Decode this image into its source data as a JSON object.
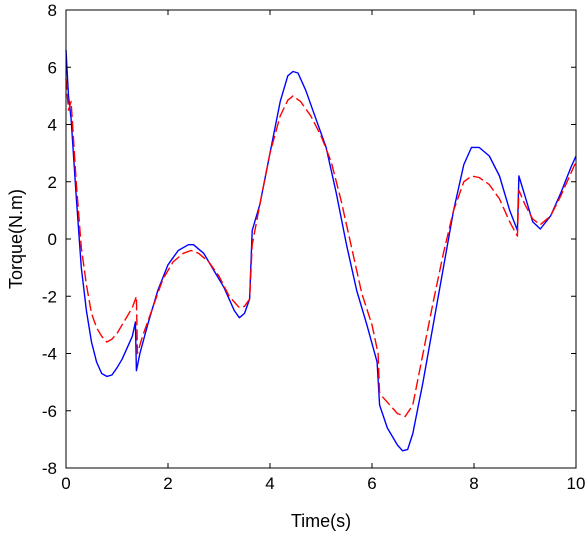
{
  "chart_data": {
    "type": "line",
    "title": "",
    "xlabel": "Time(s)",
    "ylabel": "Torque(N.m)",
    "xlim": [
      0,
      10
    ],
    "ylim": [
      -8,
      8
    ],
    "xticks": [
      0,
      2,
      4,
      6,
      8,
      10
    ],
    "yticks": [
      -8,
      -6,
      -4,
      -2,
      0,
      2,
      4,
      6,
      8
    ],
    "grid": false,
    "legend": "none",
    "series": [
      {
        "color": "#0000ff",
        "style": "solid",
        "points": [
          [
            0,
            6.6
          ],
          [
            0.05,
            5.0
          ],
          [
            0.1,
            4.2
          ],
          [
            0.2,
            1.5
          ],
          [
            0.3,
            -1.0
          ],
          [
            0.4,
            -2.5
          ],
          [
            0.5,
            -3.6
          ],
          [
            0.6,
            -4.3
          ],
          [
            0.7,
            -4.7
          ],
          [
            0.8,
            -4.8
          ],
          [
            0.9,
            -4.75
          ],
          [
            1.0,
            -4.5
          ],
          [
            1.1,
            -4.2
          ],
          [
            1.2,
            -3.8
          ],
          [
            1.3,
            -3.4
          ],
          [
            1.36,
            -2.9
          ],
          [
            1.38,
            -4.6
          ],
          [
            1.45,
            -4.0
          ],
          [
            1.6,
            -3.0
          ],
          [
            1.8,
            -1.8
          ],
          [
            2.0,
            -0.9
          ],
          [
            2.2,
            -0.4
          ],
          [
            2.4,
            -0.2
          ],
          [
            2.5,
            -0.2
          ],
          [
            2.7,
            -0.5
          ],
          [
            2.9,
            -1.1
          ],
          [
            3.1,
            -1.7
          ],
          [
            3.3,
            -2.5
          ],
          [
            3.4,
            -2.75
          ],
          [
            3.5,
            -2.6
          ],
          [
            3.6,
            -2.1
          ],
          [
            3.65,
            0.3
          ],
          [
            3.8,
            1.2
          ],
          [
            4.0,
            3.0
          ],
          [
            4.2,
            4.8
          ],
          [
            4.35,
            5.7
          ],
          [
            4.45,
            5.85
          ],
          [
            4.55,
            5.8
          ],
          [
            4.7,
            5.2
          ],
          [
            4.9,
            4.2
          ],
          [
            5.1,
            3.2
          ],
          [
            5.3,
            1.6
          ],
          [
            5.5,
            -0.2
          ],
          [
            5.7,
            -1.8
          ],
          [
            5.9,
            -3.0
          ],
          [
            6.1,
            -4.3
          ],
          [
            6.15,
            -5.8
          ],
          [
            6.3,
            -6.6
          ],
          [
            6.5,
            -7.2
          ],
          [
            6.6,
            -7.4
          ],
          [
            6.7,
            -7.35
          ],
          [
            6.8,
            -6.8
          ],
          [
            7.0,
            -5.0
          ],
          [
            7.2,
            -3.0
          ],
          [
            7.4,
            -1.0
          ],
          [
            7.6,
            1.0
          ],
          [
            7.8,
            2.6
          ],
          [
            7.95,
            3.2
          ],
          [
            8.1,
            3.2
          ],
          [
            8.3,
            2.9
          ],
          [
            8.5,
            2.2
          ],
          [
            8.7,
            1.0
          ],
          [
            8.85,
            0.3
          ],
          [
            8.88,
            2.2
          ],
          [
            9.0,
            1.5
          ],
          [
            9.15,
            0.6
          ],
          [
            9.3,
            0.35
          ],
          [
            9.5,
            0.8
          ],
          [
            9.7,
            1.6
          ],
          [
            9.9,
            2.5
          ],
          [
            10.0,
            2.9
          ]
        ]
      },
      {
        "color": "#ff0000",
        "style": "dashed",
        "points": [
          [
            0,
            5.6
          ],
          [
            0.05,
            4.5
          ],
          [
            0.1,
            4.8
          ],
          [
            0.2,
            2.0
          ],
          [
            0.3,
            -0.3
          ],
          [
            0.4,
            -1.6
          ],
          [
            0.5,
            -2.6
          ],
          [
            0.6,
            -3.1
          ],
          [
            0.7,
            -3.4
          ],
          [
            0.8,
            -3.6
          ],
          [
            0.9,
            -3.5
          ],
          [
            1.0,
            -3.3
          ],
          [
            1.1,
            -3.0
          ],
          [
            1.2,
            -2.7
          ],
          [
            1.3,
            -2.4
          ],
          [
            1.38,
            -2.0
          ],
          [
            1.4,
            -4.0
          ],
          [
            1.5,
            -3.4
          ],
          [
            1.7,
            -2.4
          ],
          [
            1.9,
            -1.4
          ],
          [
            2.1,
            -0.8
          ],
          [
            2.3,
            -0.5
          ],
          [
            2.45,
            -0.4
          ],
          [
            2.6,
            -0.5
          ],
          [
            2.8,
            -0.8
          ],
          [
            3.0,
            -1.3
          ],
          [
            3.2,
            -2.0
          ],
          [
            3.4,
            -2.4
          ],
          [
            3.5,
            -2.35
          ],
          [
            3.6,
            -2.1
          ],
          [
            3.65,
            -0.2
          ],
          [
            3.8,
            1.2
          ],
          [
            4.0,
            3.0
          ],
          [
            4.2,
            4.3
          ],
          [
            4.35,
            4.85
          ],
          [
            4.45,
            5.0
          ],
          [
            4.6,
            4.8
          ],
          [
            4.8,
            4.3
          ],
          [
            5.0,
            3.6
          ],
          [
            5.2,
            2.7
          ],
          [
            5.4,
            1.3
          ],
          [
            5.6,
            -0.3
          ],
          [
            5.8,
            -1.9
          ],
          [
            6.0,
            -3.0
          ],
          [
            6.12,
            -4.0
          ],
          [
            6.15,
            -5.4
          ],
          [
            6.3,
            -5.7
          ],
          [
            6.5,
            -6.1
          ],
          [
            6.65,
            -6.2
          ],
          [
            6.8,
            -5.8
          ],
          [
            7.0,
            -4.0
          ],
          [
            7.2,
            -2.2
          ],
          [
            7.4,
            -0.5
          ],
          [
            7.6,
            1.0
          ],
          [
            7.8,
            2.0
          ],
          [
            7.95,
            2.2
          ],
          [
            8.1,
            2.15
          ],
          [
            8.3,
            1.9
          ],
          [
            8.5,
            1.4
          ],
          [
            8.7,
            0.6
          ],
          [
            8.85,
            0.1
          ],
          [
            8.88,
            1.7
          ],
          [
            9.0,
            1.2
          ],
          [
            9.15,
            0.7
          ],
          [
            9.3,
            0.5
          ],
          [
            9.5,
            0.8
          ],
          [
            9.7,
            1.5
          ],
          [
            9.9,
            2.3
          ],
          [
            10.0,
            2.7
          ]
        ]
      }
    ]
  }
}
